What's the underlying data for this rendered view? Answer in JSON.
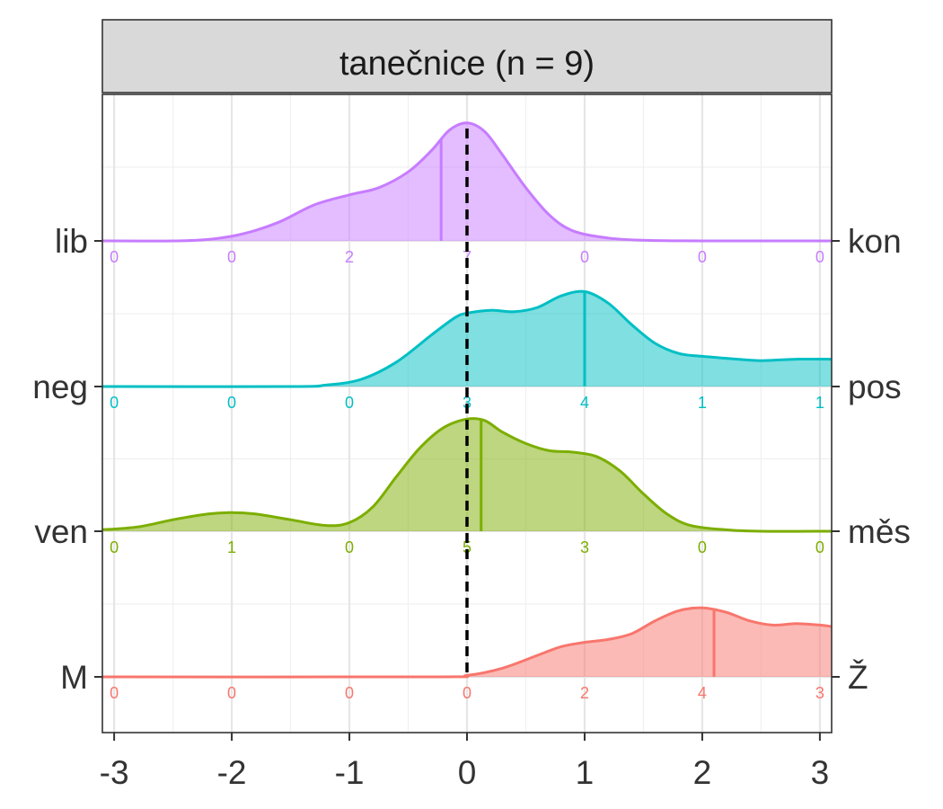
{
  "chart_data": {
    "type": "ridgeline",
    "title": "tanečnice (n = 9)",
    "xlabel": "",
    "ylabel": "",
    "xlim": [
      -3.1,
      3.1
    ],
    "x_ticks": [
      -3,
      -2,
      -1,
      0,
      1,
      2,
      3
    ],
    "x_tick_labels": [
      "-3",
      "-2",
      "-1",
      "0",
      "1",
      "2",
      "3"
    ],
    "reference_line_x": 0,
    "grid": true,
    "legend": "none",
    "series": [
      {
        "left_label": "lib",
        "right_label": "kon",
        "color": "#C77CFF",
        "counts_x": [
          -3,
          -2,
          -1,
          0,
          1,
          2,
          3
        ],
        "counts": [
          "0",
          "0",
          "2",
          "7",
          "0",
          "0",
          "0"
        ],
        "mean": -0.22,
        "density": [
          [
            -3.1,
            0
          ],
          [
            -2.5,
            0
          ],
          [
            -2.2,
            0.01
          ],
          [
            -1.9,
            0.05
          ],
          [
            -1.6,
            0.13
          ],
          [
            -1.3,
            0.25
          ],
          [
            -1.0,
            0.32
          ],
          [
            -0.75,
            0.37
          ],
          [
            -0.5,
            0.48
          ],
          [
            -0.3,
            0.63
          ],
          [
            -0.15,
            0.77
          ],
          [
            0,
            0.82
          ],
          [
            0.15,
            0.76
          ],
          [
            0.3,
            0.6
          ],
          [
            0.5,
            0.37
          ],
          [
            0.7,
            0.18
          ],
          [
            0.9,
            0.07
          ],
          [
            1.2,
            0.02
          ],
          [
            1.5,
            0.005
          ],
          [
            2.0,
            0
          ],
          [
            3.1,
            0
          ]
        ]
      },
      {
        "left_label": "neg",
        "right_label": "pos",
        "color": "#00BFC4",
        "counts_x": [
          -3,
          -2,
          -1,
          0,
          1,
          2,
          3
        ],
        "counts": [
          "0",
          "0",
          "0",
          "3",
          "4",
          "1",
          "1"
        ],
        "mean": 1.0,
        "density": [
          [
            -3.1,
            0
          ],
          [
            -1.5,
            0
          ],
          [
            -1.2,
            0.01
          ],
          [
            -0.9,
            0.05
          ],
          [
            -0.6,
            0.17
          ],
          [
            -0.3,
            0.36
          ],
          [
            -0.1,
            0.48
          ],
          [
            0,
            0.51
          ],
          [
            0.2,
            0.53
          ],
          [
            0.4,
            0.52
          ],
          [
            0.6,
            0.55
          ],
          [
            0.8,
            0.63
          ],
          [
            1.0,
            0.66
          ],
          [
            1.2,
            0.58
          ],
          [
            1.4,
            0.43
          ],
          [
            1.6,
            0.3
          ],
          [
            1.8,
            0.23
          ],
          [
            2.0,
            0.21
          ],
          [
            2.3,
            0.19
          ],
          [
            2.5,
            0.18
          ],
          [
            2.8,
            0.19
          ],
          [
            3.1,
            0.19
          ]
        ]
      },
      {
        "left_label": "ven",
        "right_label": "měs",
        "color": "#7CAE00",
        "counts_x": [
          -3,
          -2,
          -1,
          0,
          1,
          2,
          3
        ],
        "counts": [
          "0",
          "1",
          "0",
          "5",
          "3",
          "0",
          "0"
        ],
        "mean": 0.12,
        "density": [
          [
            -3.1,
            0.01
          ],
          [
            -2.8,
            0.03
          ],
          [
            -2.5,
            0.08
          ],
          [
            -2.2,
            0.12
          ],
          [
            -2.0,
            0.13
          ],
          [
            -1.8,
            0.12
          ],
          [
            -1.5,
            0.08
          ],
          [
            -1.2,
            0.04
          ],
          [
            -1.0,
            0.06
          ],
          [
            -0.8,
            0.17
          ],
          [
            -0.6,
            0.38
          ],
          [
            -0.4,
            0.58
          ],
          [
            -0.2,
            0.72
          ],
          [
            0,
            0.78
          ],
          [
            0.15,
            0.77
          ],
          [
            0.3,
            0.69
          ],
          [
            0.5,
            0.61
          ],
          [
            0.7,
            0.56
          ],
          [
            0.9,
            0.55
          ],
          [
            1.1,
            0.52
          ],
          [
            1.3,
            0.42
          ],
          [
            1.5,
            0.26
          ],
          [
            1.7,
            0.12
          ],
          [
            1.9,
            0.04
          ],
          [
            2.2,
            0.01
          ],
          [
            2.5,
            0
          ],
          [
            3.1,
            0
          ]
        ]
      },
      {
        "left_label": "M",
        "right_label": "Ž",
        "color": "#F8766D",
        "counts_x": [
          -3,
          -2,
          -1,
          0,
          1,
          2,
          3
        ],
        "counts": [
          "0",
          "0",
          "0",
          "0",
          "2",
          "4",
          "3"
        ],
        "mean": 2.1,
        "density": [
          [
            -3.1,
            0
          ],
          [
            -0.3,
            0
          ],
          [
            0,
            0.01
          ],
          [
            0.3,
            0.06
          ],
          [
            0.6,
            0.15
          ],
          [
            0.8,
            0.21
          ],
          [
            1.0,
            0.24
          ],
          [
            1.2,
            0.26
          ],
          [
            1.4,
            0.3
          ],
          [
            1.6,
            0.39
          ],
          [
            1.8,
            0.46
          ],
          [
            2.0,
            0.48
          ],
          [
            2.2,
            0.45
          ],
          [
            2.4,
            0.39
          ],
          [
            2.6,
            0.36
          ],
          [
            2.8,
            0.37
          ],
          [
            3.0,
            0.36
          ],
          [
            3.1,
            0.35
          ]
        ]
      }
    ]
  }
}
